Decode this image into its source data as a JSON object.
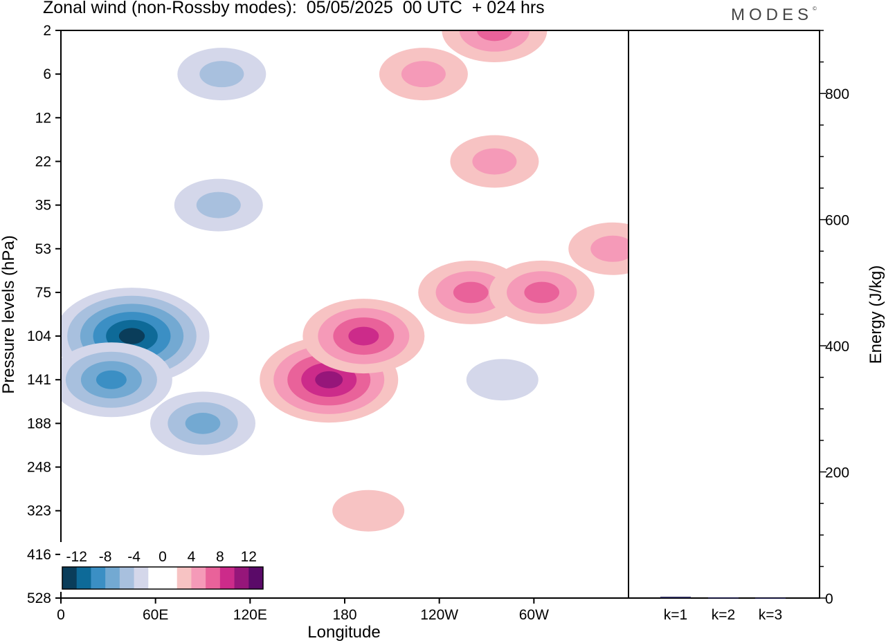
{
  "title": "Zonal wind (non-Rossby modes):  05/05/2025  00 UTC  + 024 hrs",
  "logo": "MODES",
  "logo_mark": "©",
  "chart_data": [
    {
      "type": "heatmap",
      "xlabel": "Longitude",
      "ylabel": "Pressure levels (hPa)",
      "x_ticks": [
        "0",
        "60E",
        "120E",
        "180",
        "120W",
        "60W"
      ],
      "x_tick_degrees": [
        0,
        60,
        120,
        180,
        240,
        300
      ],
      "xlim": [
        0,
        360
      ],
      "y_ticks": [
        "2",
        "6",
        "12",
        "22",
        "35",
        "53",
        "75",
        "104",
        "141",
        "188",
        "248",
        "323",
        "416",
        "528"
      ],
      "colorbar": {
        "labels": [
          "-12",
          "-8",
          "-4",
          "0",
          "4",
          "8",
          "12"
        ],
        "colors": [
          "#0a3d5a",
          "#0e6a98",
          "#3b8fc4",
          "#73a9d2",
          "#a8c0de",
          "#d4d7ea",
          "#ffffff",
          "#ffffff",
          "#f7c3c3",
          "#f59ab8",
          "#e9629a",
          "#cc2b8a",
          "#96167a",
          "#5a0a68"
        ]
      },
      "features": [
        {
          "lon": 45,
          "level": "104",
          "value": -12
        },
        {
          "lon": 32,
          "level": "141",
          "value": -8
        },
        {
          "lon": 90,
          "level": "188",
          "value": -6
        },
        {
          "lon": 100,
          "level": "35",
          "value": -4
        },
        {
          "lon": 102,
          "level": "6",
          "value": -4
        },
        {
          "lon": 170,
          "level": "141",
          "value": 10
        },
        {
          "lon": 192,
          "level": "104",
          "value": 8
        },
        {
          "lon": 260,
          "level": "75",
          "value": 6
        },
        {
          "lon": 275,
          "level": "2",
          "value": 6
        },
        {
          "lon": 305,
          "level": "75",
          "value": 6
        },
        {
          "lon": 230,
          "level": "6",
          "value": 4
        },
        {
          "lon": 275,
          "level": "22",
          "value": 4
        },
        {
          "lon": 195,
          "level": "323",
          "value": 2
        },
        {
          "lon": 350,
          "level": "53",
          "value": 4
        },
        {
          "lon": 280,
          "level": "141",
          "value": -2
        }
      ]
    },
    {
      "type": "bar",
      "ylabel": "Energy (J/kg)",
      "categories": [
        "k=1",
        "k=2",
        "k=3"
      ],
      "values": [
        2,
        1,
        0.5
      ],
      "ylim": [
        0,
        900
      ],
      "y_ticks": [
        0,
        200,
        400,
        600,
        800
      ]
    }
  ]
}
